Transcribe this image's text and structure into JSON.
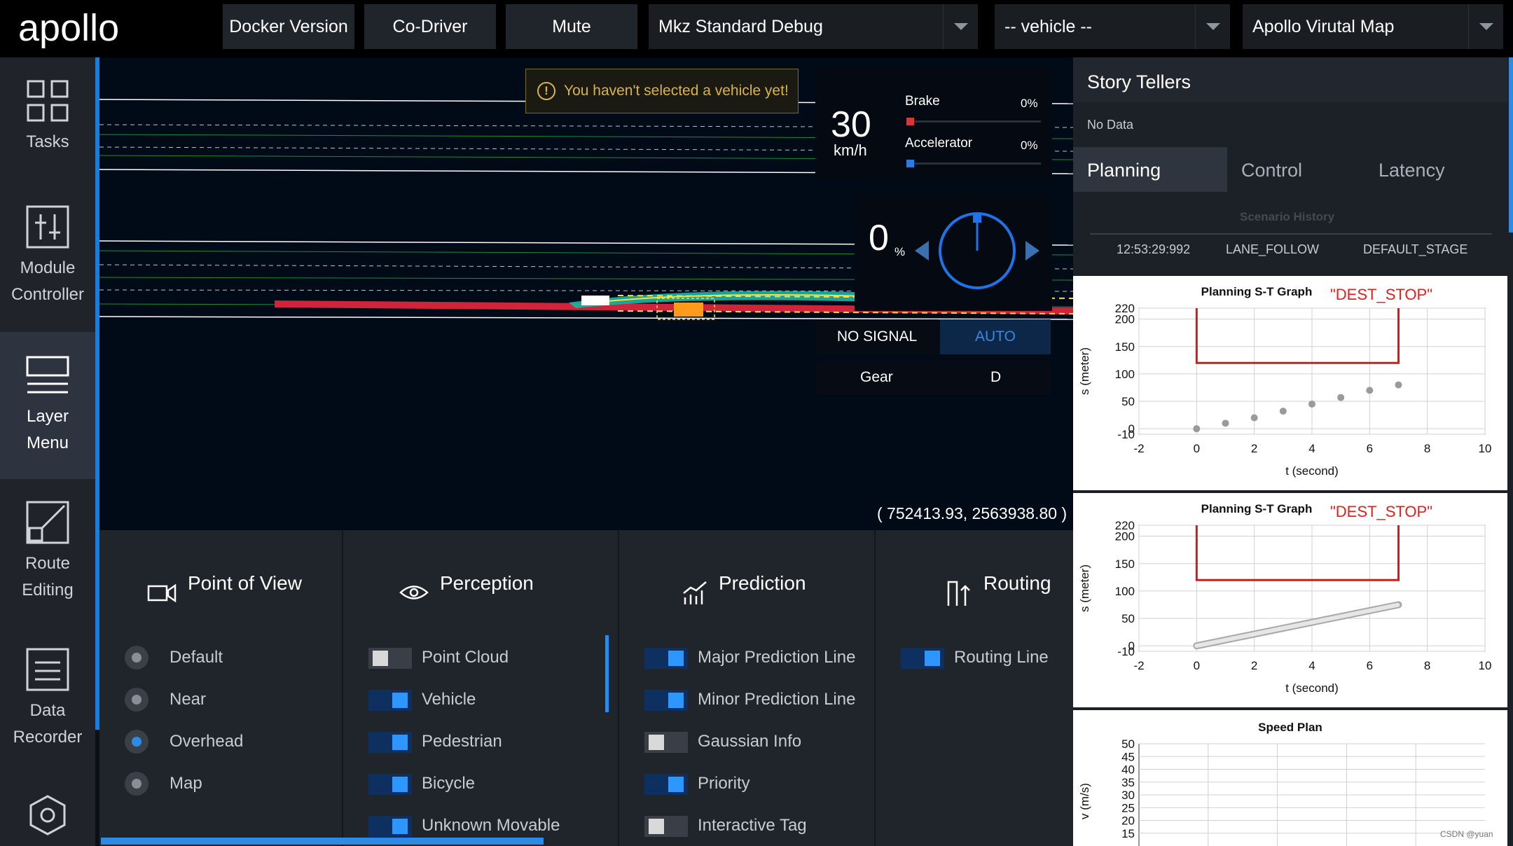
{
  "header": {
    "brand": "apollo",
    "buttons": [
      "Docker Version",
      "Co-Driver",
      "Mute"
    ],
    "mode_select": "Mkz Standard Debug",
    "vehicle_select": "-- vehicle --",
    "map_select": "Apollo Virutal Map"
  },
  "nav": {
    "items": [
      {
        "line1": "Tasks",
        "line2": ""
      },
      {
        "line1": "Module",
        "line2": "Controller"
      },
      {
        "line1": "Layer",
        "line2": "Menu"
      },
      {
        "line1": "Route",
        "line2": "Editing"
      },
      {
        "line1": "Data",
        "line2": "Recorder"
      }
    ]
  },
  "scene": {
    "warning": "You haven't selected a vehicle yet!",
    "warning_mark": "!",
    "speed": "30",
    "speed_unit": "km/h",
    "brake_label": "Brake",
    "brake_value": "0%",
    "brake_fraction": 0,
    "accel_label": "Accelerator",
    "accel_value": "0%",
    "accel_fraction": 0,
    "steering": "0",
    "steering_unit": "%",
    "signal": "NO SIGNAL",
    "drive_mode": "AUTO",
    "gear_label": "Gear",
    "gear_value": "D",
    "coordinates": "( 752413.93, 2563938.80 )"
  },
  "layer_menu": {
    "point_of_view": {
      "title": "Point of View",
      "options": [
        {
          "label": "Default",
          "selected": false
        },
        {
          "label": "Near",
          "selected": false
        },
        {
          "label": "Overhead",
          "selected": true
        },
        {
          "label": "Map",
          "selected": false
        }
      ]
    },
    "perception": {
      "title": "Perception",
      "options": [
        {
          "label": "Point Cloud",
          "on": false
        },
        {
          "label": "Vehicle",
          "on": true
        },
        {
          "label": "Pedestrian",
          "on": true
        },
        {
          "label": "Bicycle",
          "on": true
        },
        {
          "label": "Unknown Movable",
          "on": true
        }
      ]
    },
    "prediction": {
      "title": "Prediction",
      "options": [
        {
          "label": "Major Prediction Line",
          "on": true
        },
        {
          "label": "Minor Prediction Line",
          "on": true
        },
        {
          "label": "Gaussian Info",
          "on": false
        },
        {
          "label": "Priority",
          "on": true
        },
        {
          "label": "Interactive Tag",
          "on": false
        }
      ]
    },
    "routing": {
      "title": "Routing",
      "options": [
        {
          "label": "Routing Line",
          "on": true
        }
      ]
    }
  },
  "right_panel": {
    "title": "Story Tellers",
    "no_data": "No Data",
    "tabs": [
      "Planning",
      "Control",
      "Latency"
    ],
    "active_tab": "Planning",
    "scenario_history": {
      "title": "Scenario History",
      "row": [
        "12:53:29:992",
        "LANE_FOLLOW",
        "DEFAULT_STAGE"
      ]
    },
    "watermark": "CSDN @yuan"
  },
  "chart_data": [
    {
      "type": "scatter",
      "title": "Planning S-T Graph",
      "annotation": "\"DEST_STOP\"",
      "xlabel": "t (second)",
      "ylabel": "s (meter)",
      "xlim": [
        -2,
        10
      ],
      "ylim": [
        -10,
        220
      ],
      "xticks": [
        -2,
        0,
        2,
        4,
        6,
        8,
        10
      ],
      "yticks": [
        -10,
        0,
        50,
        100,
        150,
        200,
        220
      ],
      "grid": true,
      "boundary": {
        "t": [
          0,
          0,
          7,
          7
        ],
        "s": [
          220,
          120,
          120,
          220
        ]
      },
      "points": {
        "x": [
          0,
          1,
          2,
          3,
          4,
          5,
          6,
          7
        ],
        "y": [
          0,
          10,
          20,
          32,
          45,
          57,
          70,
          80
        ]
      }
    },
    {
      "type": "line",
      "title": "Planning S-T Graph",
      "annotation": "\"DEST_STOP\"",
      "xlabel": "t (second)",
      "ylabel": "s (meter)",
      "xlim": [
        -2,
        10
      ],
      "ylim": [
        -10,
        220
      ],
      "xticks": [
        -2,
        0,
        2,
        4,
        6,
        8,
        10
      ],
      "yticks": [
        -10,
        0,
        50,
        100,
        150,
        200,
        220
      ],
      "grid": true,
      "boundary": {
        "t": [
          0,
          0,
          7,
          7
        ],
        "s": [
          220,
          120,
          120,
          220
        ]
      },
      "line": {
        "x": [
          0,
          7
        ],
        "y": [
          0,
          75
        ]
      }
    },
    {
      "type": "line",
      "title": "Speed Plan",
      "ylabel": "v (m/s)",
      "yticks": [
        15,
        20,
        25,
        30,
        35,
        40,
        45,
        50
      ],
      "ylim": [
        10,
        50
      ],
      "grid": true
    }
  ]
}
